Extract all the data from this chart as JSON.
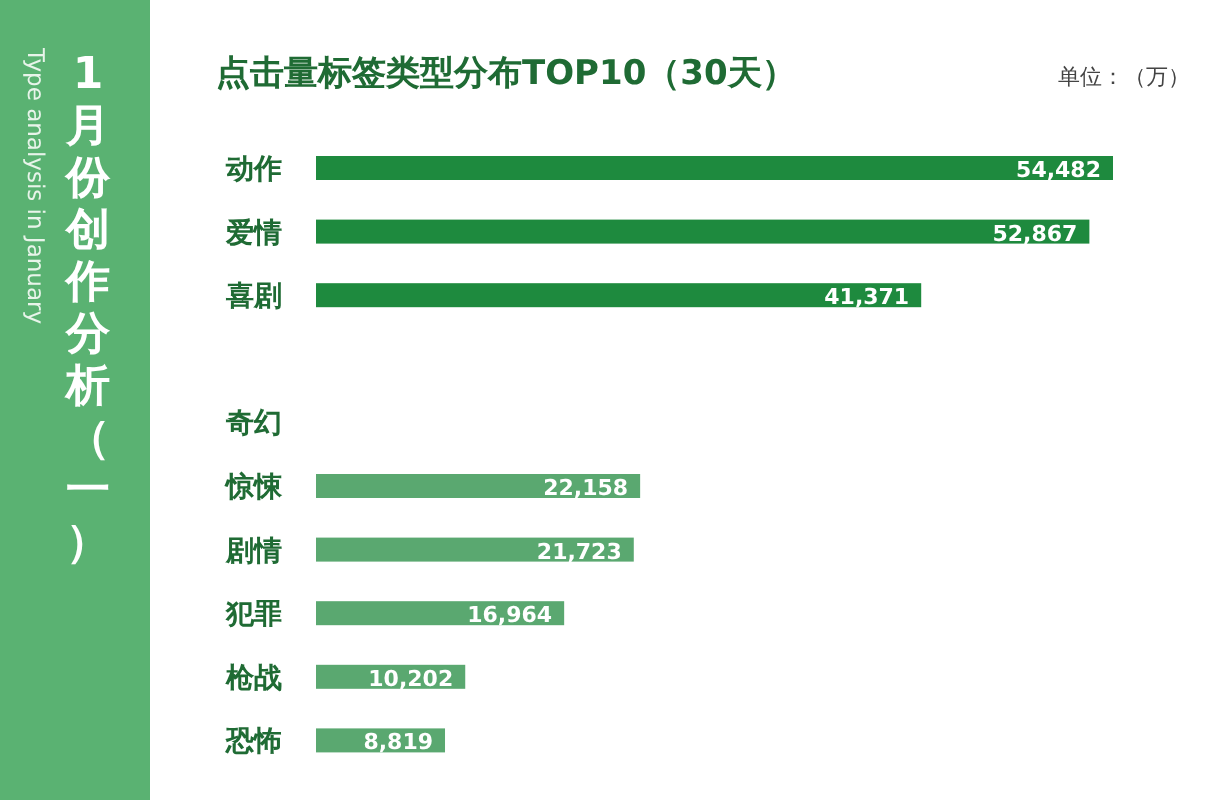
{
  "chart_data": {
    "type": "bar",
    "orientation": "horizontal",
    "title": "点击量标签类型分布TOP10（30天）",
    "annotations": [
      "1月份创作分析（一）",
      "Type analysis in January",
      "单位：（万）"
    ],
    "categories": [
      "动作",
      "爱情",
      "喜剧",
      null,
      "奇幻",
      "惊悚",
      "剧情",
      "犯罪",
      "枪战",
      "恐怖"
    ],
    "values": [
      54482,
      52867,
      41371,
      null,
      null,
      22158,
      21723,
      16964,
      10202,
      8819
    ],
    "value_labels": [
      "54,482",
      "52,867",
      "41,371",
      null,
      null,
      "22,158",
      "21,723",
      "16,964",
      "10,202",
      "8,819"
    ],
    "colors": [
      "#1e8a3e",
      "#1e8a3e",
      "#1e8a3e",
      null,
      null,
      "#5aa870",
      "#5aa870",
      "#5aa870",
      "#5aa870",
      "#5aa870"
    ]
  }
}
